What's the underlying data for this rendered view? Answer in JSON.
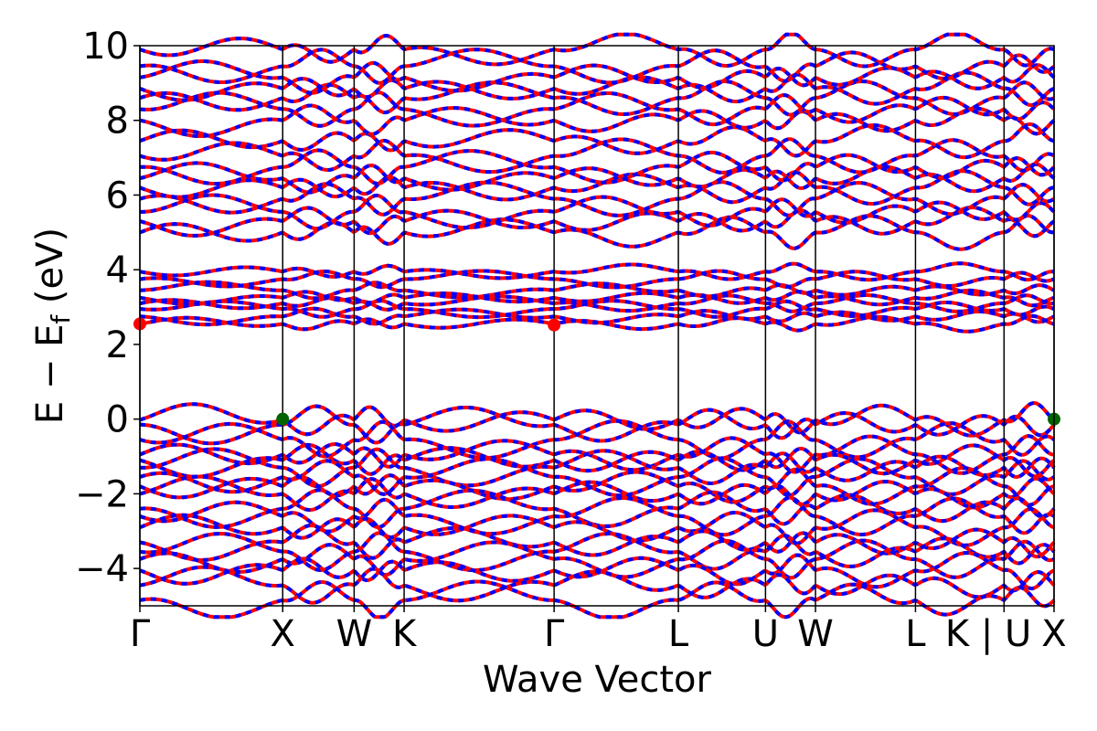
{
  "chart_data": {
    "type": "line",
    "title": "",
    "xlabel": "Wave Vector",
    "ylabel_parts": {
      "main": "E − E",
      "sub": "f",
      "unit": " (eV)"
    },
    "ylim": [
      -5,
      10
    ],
    "y_ticks": [
      -4,
      -2,
      0,
      2,
      4,
      6,
      8,
      10
    ],
    "y_tick_labels": [
      "−4",
      "−2",
      "0",
      "2",
      "4",
      "6",
      "8",
      "10"
    ],
    "k_labels": [
      "Γ",
      "X",
      "W",
      "K",
      "Γ",
      "L",
      "U",
      "W",
      "L",
      "K | U",
      "X"
    ],
    "k_positions": [
      0.0,
      1.0,
      1.5,
      1.85,
      2.9,
      3.77,
      4.38,
      4.73,
      5.43,
      6.05,
      6.4
    ],
    "k_label_offsets_note": "",
    "spin_up_color": "#ff0000",
    "spin_down_color": "#0000ff",
    "extrema_markers": {
      "cbm": {
        "color": "#ff0000",
        "points": [
          [
            0.0,
            2.55
          ],
          [
            2.9,
            2.52
          ]
        ]
      },
      "vbm": {
        "color": "#006400",
        "points": [
          [
            1.0,
            0.0
          ],
          [
            6.4,
            0.0
          ]
        ]
      }
    },
    "band_groups": {
      "valence_top": [
        -0.02,
        -0.15,
        -0.55,
        -0.95,
        -1.1,
        -1.3,
        -1.55,
        -1.8,
        -2.0,
        -2.4,
        -2.6,
        -2.9,
        -3.3,
        -3.55,
        -3.75,
        -4.05,
        -4.45,
        -4.85
      ],
      "conduction_low": [
        2.55,
        2.75,
        2.95,
        3.1,
        3.25,
        3.45,
        3.75,
        3.95
      ],
      "conduction_high": [
        5.0,
        5.3,
        5.55,
        5.9,
        6.2,
        6.45,
        6.75,
        7.05,
        7.45,
        8.0,
        8.3,
        8.6,
        8.85,
        9.15,
        9.45,
        9.9
      ]
    }
  }
}
